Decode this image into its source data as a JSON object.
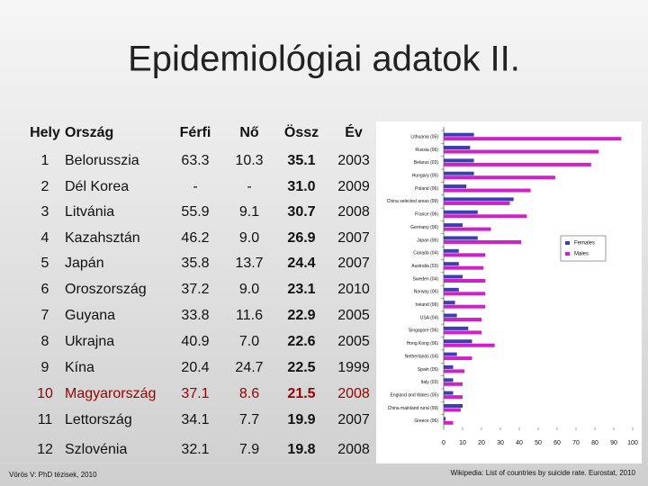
{
  "title": "Epidemiológiai adatok II.",
  "table": {
    "header": [
      "Hely",
      "Ország",
      "Férfi",
      "Nő",
      "Össz",
      "Év"
    ],
    "rows": [
      [
        "1",
        "Belorusszia",
        "63.3",
        "10.3",
        "35.1",
        "2003"
      ],
      [
        "2",
        "Dél Korea",
        "-",
        "-",
        "31.0",
        "2009"
      ],
      [
        "3",
        "Litvánia",
        "55.9",
        "9.1",
        "30.7",
        "2008"
      ],
      [
        "4",
        "Kazahsztán",
        "46.2",
        "9.0",
        "26.9",
        "2007"
      ],
      [
        "5",
        "Japán",
        "35.8",
        "13.7",
        "24.4",
        "2007"
      ],
      [
        "6",
        "Oroszország",
        "37.2",
        "9.0",
        "23.1",
        "2010"
      ],
      [
        "7",
        "Guyana",
        "33.8",
        "11.6",
        "22.9",
        "2005"
      ],
      [
        "8",
        "Ukrajna",
        "40.9",
        "7.0",
        "22.6",
        "2005"
      ],
      [
        "9",
        "Kína",
        "20.4",
        "24.7",
        "22.5",
        "1999"
      ],
      [
        "10",
        "Magyarország",
        "37.1",
        "8.6",
        "21.5",
        "2008"
      ],
      [
        "11",
        "Lettország",
        "34.1",
        "7.7",
        "19.9",
        "2007"
      ],
      [
        "12",
        "Szlovénia",
        "32.1",
        "7.9",
        "19.8",
        "2008"
      ]
    ]
  },
  "chart": {
    "type": "barh",
    "categories": [
      "Lithuania (05)",
      "Russia (06)",
      "Belarus (03)",
      "Hungary (05)",
      "Poland (06)",
      "China selected areas (99)",
      "France (06)",
      "Germany (06)",
      "Japan (06)",
      "Canada (04)",
      "Australia (03)",
      "Sweden (04)",
      "Norway (06)",
      "Ireland (06)",
      "USA (04)",
      "Singapore (06)",
      "Hong Kong (06)",
      "Netherlands (04)",
      "Spain (05)",
      "Italy (03)",
      "England and Wales (05)",
      "China mainland rural (99)",
      "Greece (06)"
    ],
    "series": [
      {
        "name": "Females",
        "color": "#3b3fb0",
        "values": [
          16,
          14,
          16,
          16,
          12,
          37,
          18,
          10,
          18,
          8,
          8,
          10,
          8,
          6,
          7,
          13,
          15,
          7,
          5,
          5,
          5,
          10,
          1
        ]
      },
      {
        "name": "Males",
        "color": "#d020c8",
        "values": [
          94,
          82,
          78,
          59,
          46,
          35,
          44,
          25,
          41,
          22,
          21,
          22,
          22,
          22,
          20,
          20,
          27,
          15,
          11,
          10,
          10,
          9,
          5
        ]
      }
    ],
    "xlim": [
      0,
      100
    ],
    "xticks": [
      0,
      10,
      20,
      30,
      40,
      50,
      60,
      70,
      80,
      90,
      100
    ]
  },
  "footer": {
    "left": "Vörös V: PhD tézisek, 2010",
    "right": "Wikipedia: List of countries by suicide rate. Eurostat, 2010"
  }
}
